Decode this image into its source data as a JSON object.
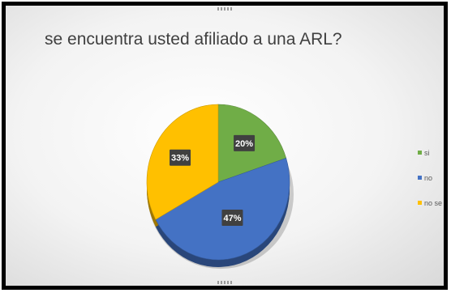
{
  "chart_data": {
    "type": "pie",
    "title": "se encuentra usted afiliado a una ARL?",
    "slices": [
      {
        "label": "si",
        "value": 20,
        "display": "20%",
        "color": "#70ad47"
      },
      {
        "label": "no",
        "value": 47,
        "display": "47%",
        "color": "#4472c4"
      },
      {
        "label": "no se",
        "value": 33,
        "display": "33%",
        "color": "#ffc000"
      }
    ],
    "legend_position": "right"
  }
}
